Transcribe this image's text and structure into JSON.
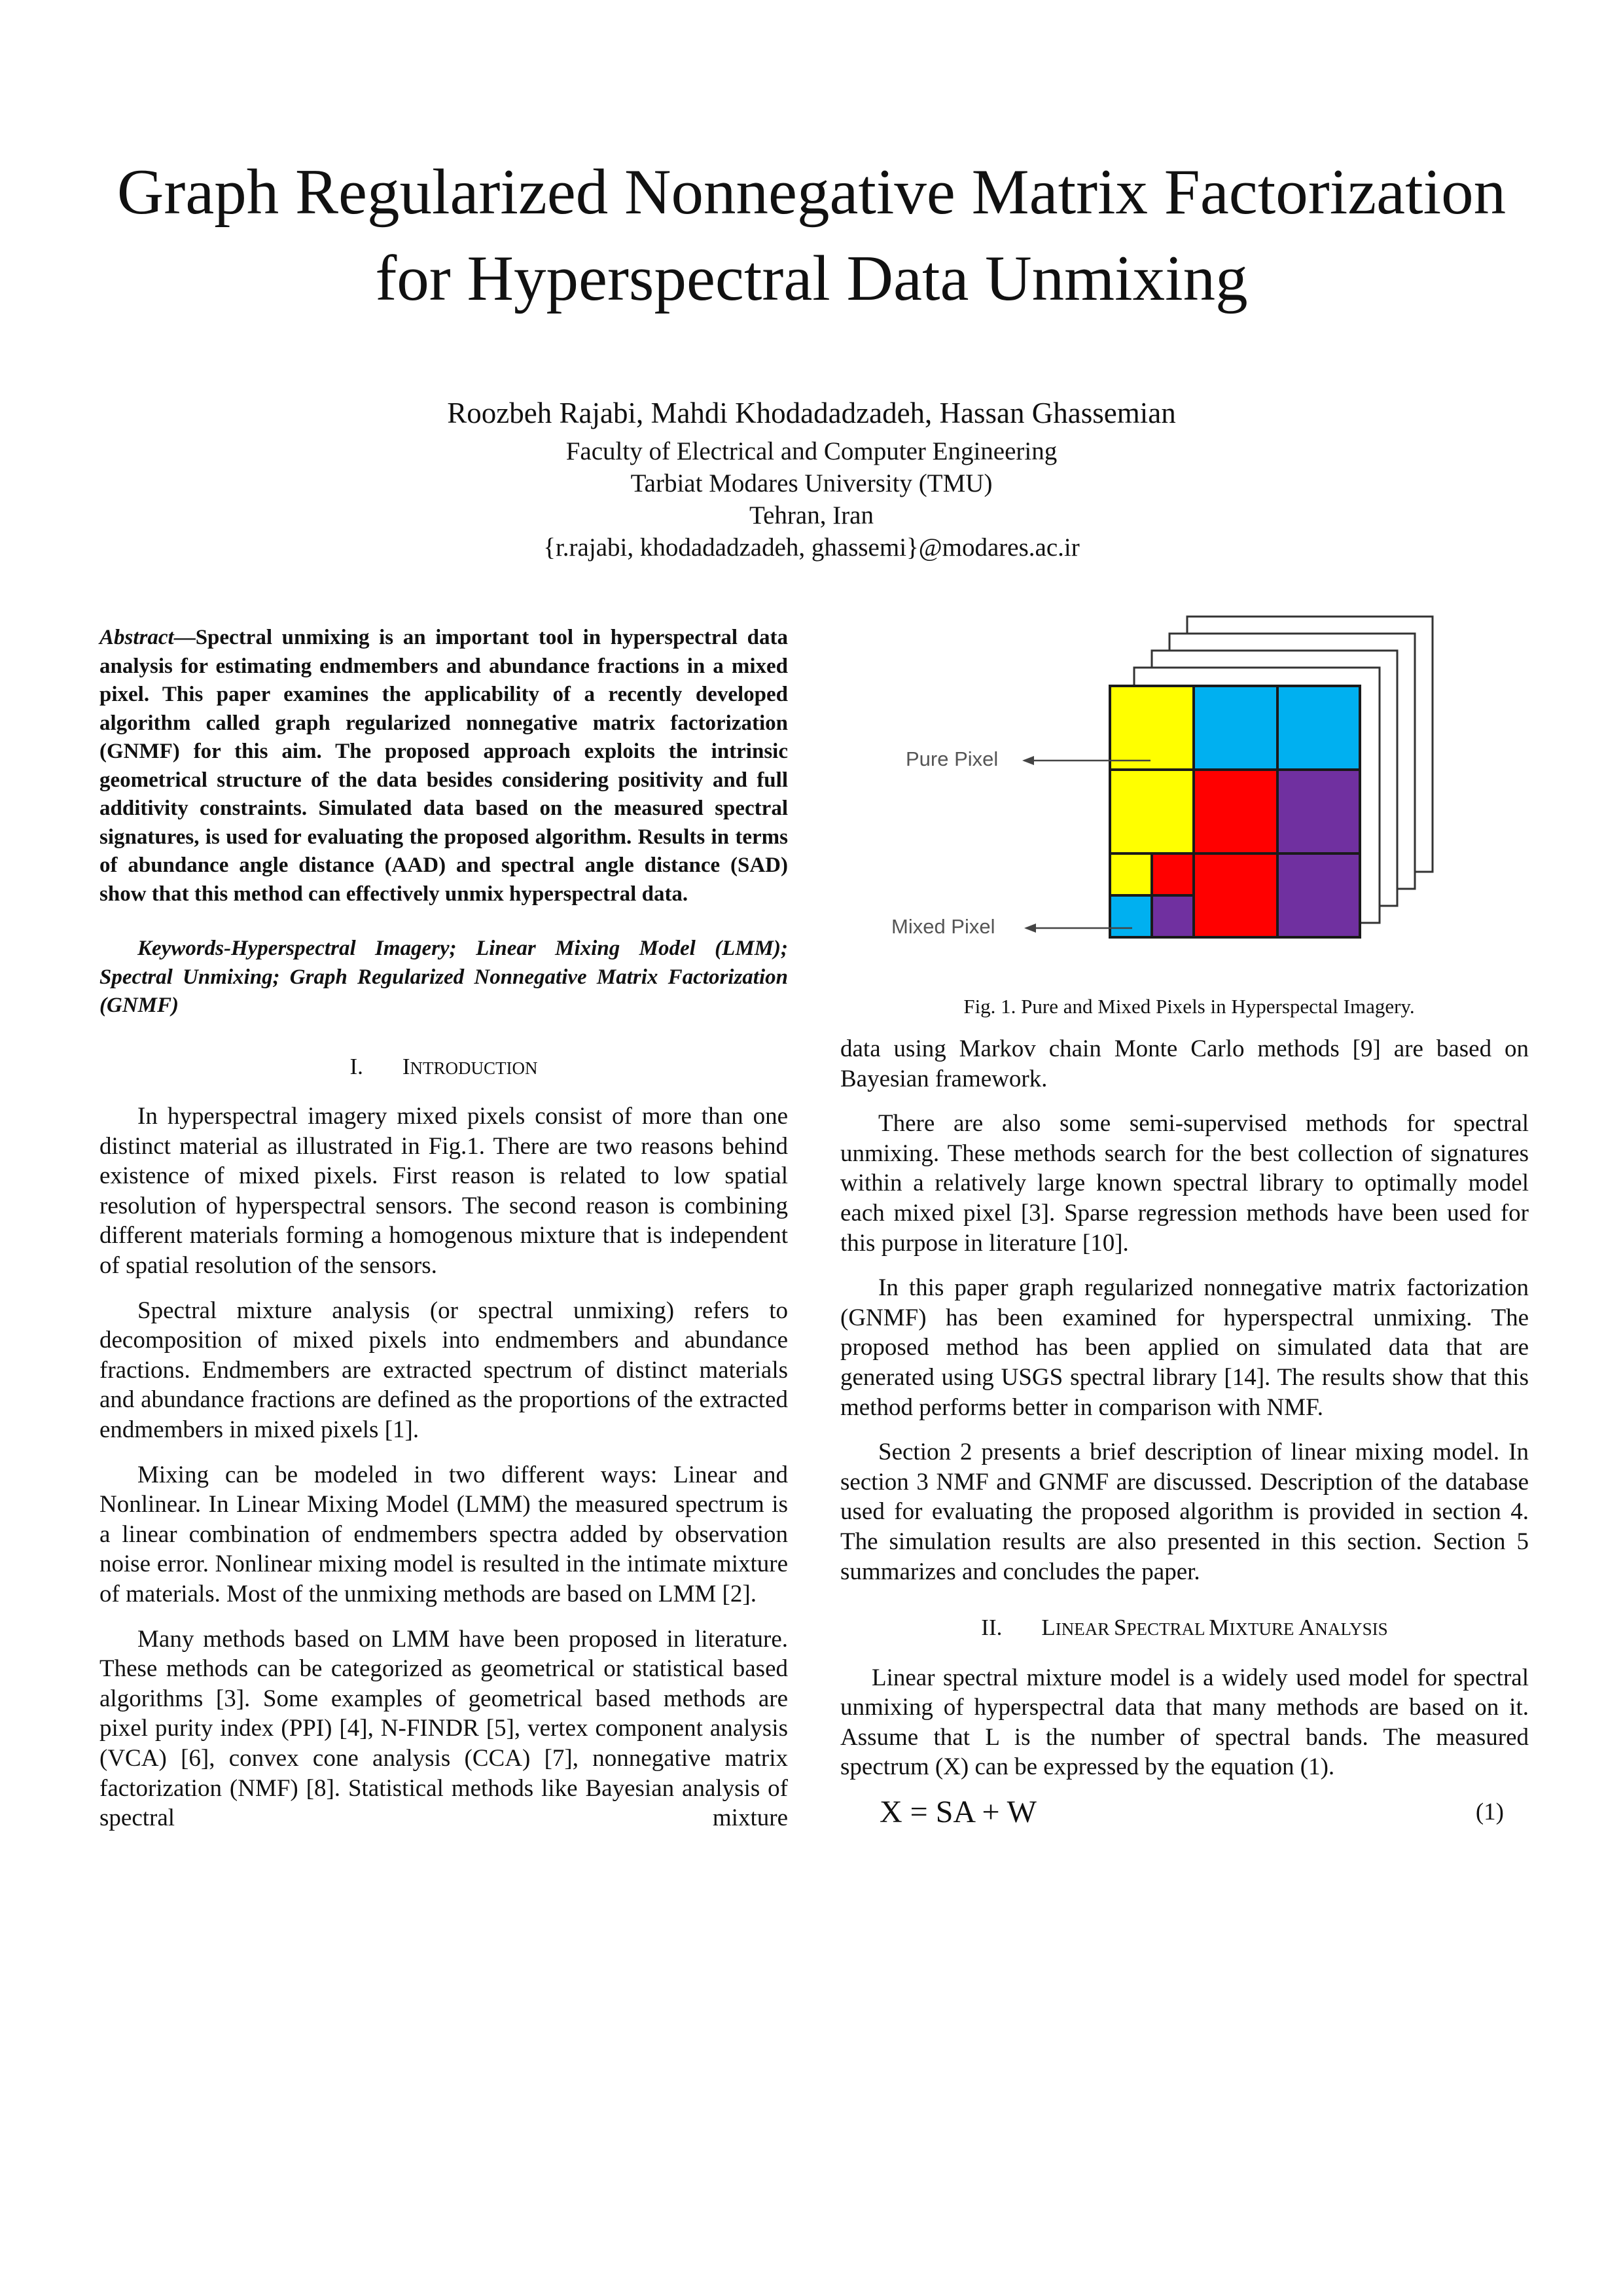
{
  "paper": {
    "title_line1": "Graph Regularized Nonnegative Matrix Factorization",
    "title_line2": "for Hyperspectral Data Unmixing",
    "authors": "Roozbeh Rajabi, Mahdi Khodadadzadeh, Hassan Ghassemian",
    "affiliation": [
      "Faculty of Electrical and Computer Engineering",
      "Tarbiat Modares University (TMU)",
      "Tehran, Iran",
      "{r.rajabi, khodadadzadeh, ghassemi}@modares.ac.ir"
    ]
  },
  "abstract": {
    "label": "Abstract",
    "dash": "—",
    "text": "Spectral unmixing is an important tool in hyperspectral data analysis for estimating endmembers and abundance fractions in a mixed pixel.  This paper examines the applicability of a recently developed algorithm called graph regularized nonnegative matrix factorization (GNMF) for this aim. The proposed approach exploits the intrinsic geometrical structure of the data besides considering positivity and full additivity constraints. Simulated data based on the measured spectral signatures, is used for evaluating the proposed algorithm. Results in terms of abundance angle distance (AAD) and spectral angle distance (SAD) show that this method can effectively unmix hyperspectral data."
  },
  "keywords": {
    "text": "Keywords-Hyperspectral Imagery; Linear Mixing Model (LMM); Spectral Unmixing; Graph Regularized Nonnegative Matrix Factorization (GNMF)"
  },
  "section1": {
    "num": "I.",
    "title_first": "I",
    "title_rest": "NTRODUCTION",
    "paragraphs": [
      "In hyperspectral imagery mixed pixels consist of more than one distinct material as illustrated in Fig.1. There are two reasons behind existence of mixed pixels. First reason is related to low spatial resolution of hyperspectral sensors. The second reason is combining different materials forming a homogenous mixture that is independent of spatial resolution of the sensors.",
      "Spectral mixture analysis (or spectral unmixing) refers to decomposition of mixed pixels into endmembers and abundance fractions. Endmembers are extracted spectrum of distinct materials and abundance fractions are defined as the proportions of  the extracted endmembers in mixed pixels [1].",
      "Mixing can be modeled in two different ways: Linear and Nonlinear. In Linear Mixing Model (LMM) the measured spectrum is a linear combination of endmembers spectra added by observation noise error. Nonlinear mixing model is resulted in the intimate mixture of materials. Most of the unmixing methods are based on LMM [2].",
      "Many methods based on LMM have been proposed in literature. These methods can be categorized as geometrical or statistical based algorithms [3]. Some examples of geometrical based methods are pixel purity index (PPI) [4], N-FINDR [5], vertex component analysis (VCA) [6], convex cone analysis (CCA) [7], nonnegative matrix factorization (NMF) [8]. Statistical methods like Bayesian analysis of spectral mixture"
    ],
    "continuation": "data using Markov chain Monte Carlo methods [9] are based on Bayesian framework.",
    "right_paragraphs": [
      "There are also some semi-supervised methods for spectral unmixing. These methods search for the best collection of signatures within a relatively large known spectral library to optimally model each mixed pixel [3]. Sparse regression methods have been used for this purpose in literature [10].",
      "In this paper graph regularized nonnegative matrix factorization (GNMF) has been examined for hyperspectral unmixing. The proposed method has been applied on simulated data that are generated using USGS spectral library [14]. The results show that this method performs better in comparison with NMF.",
      "Section 2 presents a brief description of linear mixing model. In section 3 NMF and GNMF are discussed. Description of the database used for evaluating the proposed algorithm is provided in section 4. The simulation results are also presented in this section. Section 5 summarizes and concludes the paper."
    ]
  },
  "section2": {
    "num": "II.",
    "parts": [
      {
        "big": "L",
        "small": "INEAR "
      },
      {
        "big": "S",
        "small": "PECTRAL "
      },
      {
        "big": "M",
        "small": "IXTURE "
      },
      {
        "big": "A",
        "small": "NALYSIS"
      }
    ],
    "p1_big0": "L",
    "p1_small0": "INEAR ",
    "p1_big1": "S",
    "p1_small1": "PECTRAL ",
    "p1_big2": "M",
    "p1_small2": "IXTURE ",
    "p1_big3": "A",
    "p1_small3": "NALYSIS",
    "paragraph": "Linear spectral mixture model is a widely used model for spectral unmixing of hyperspectral data that many methods are based on it. Assume that L is the number of spectral bands. The measured spectrum (X) can be expressed by the equation (1).",
    "equation": "X = SA + W",
    "equation_number": "(1)"
  },
  "figure1": {
    "label_pure": "Pure Pixel",
    "label_mixed": "Mixed Pixel",
    "caption": "Fig. 1. Pure and Mixed Pixels in Hyperspectal Imagery.",
    "colors": {
      "yellow": "#ffff00",
      "cyan": "#00b0f0",
      "red": "#ff0000",
      "purple": "#7030a0",
      "label_gray": "#555555"
    }
  }
}
